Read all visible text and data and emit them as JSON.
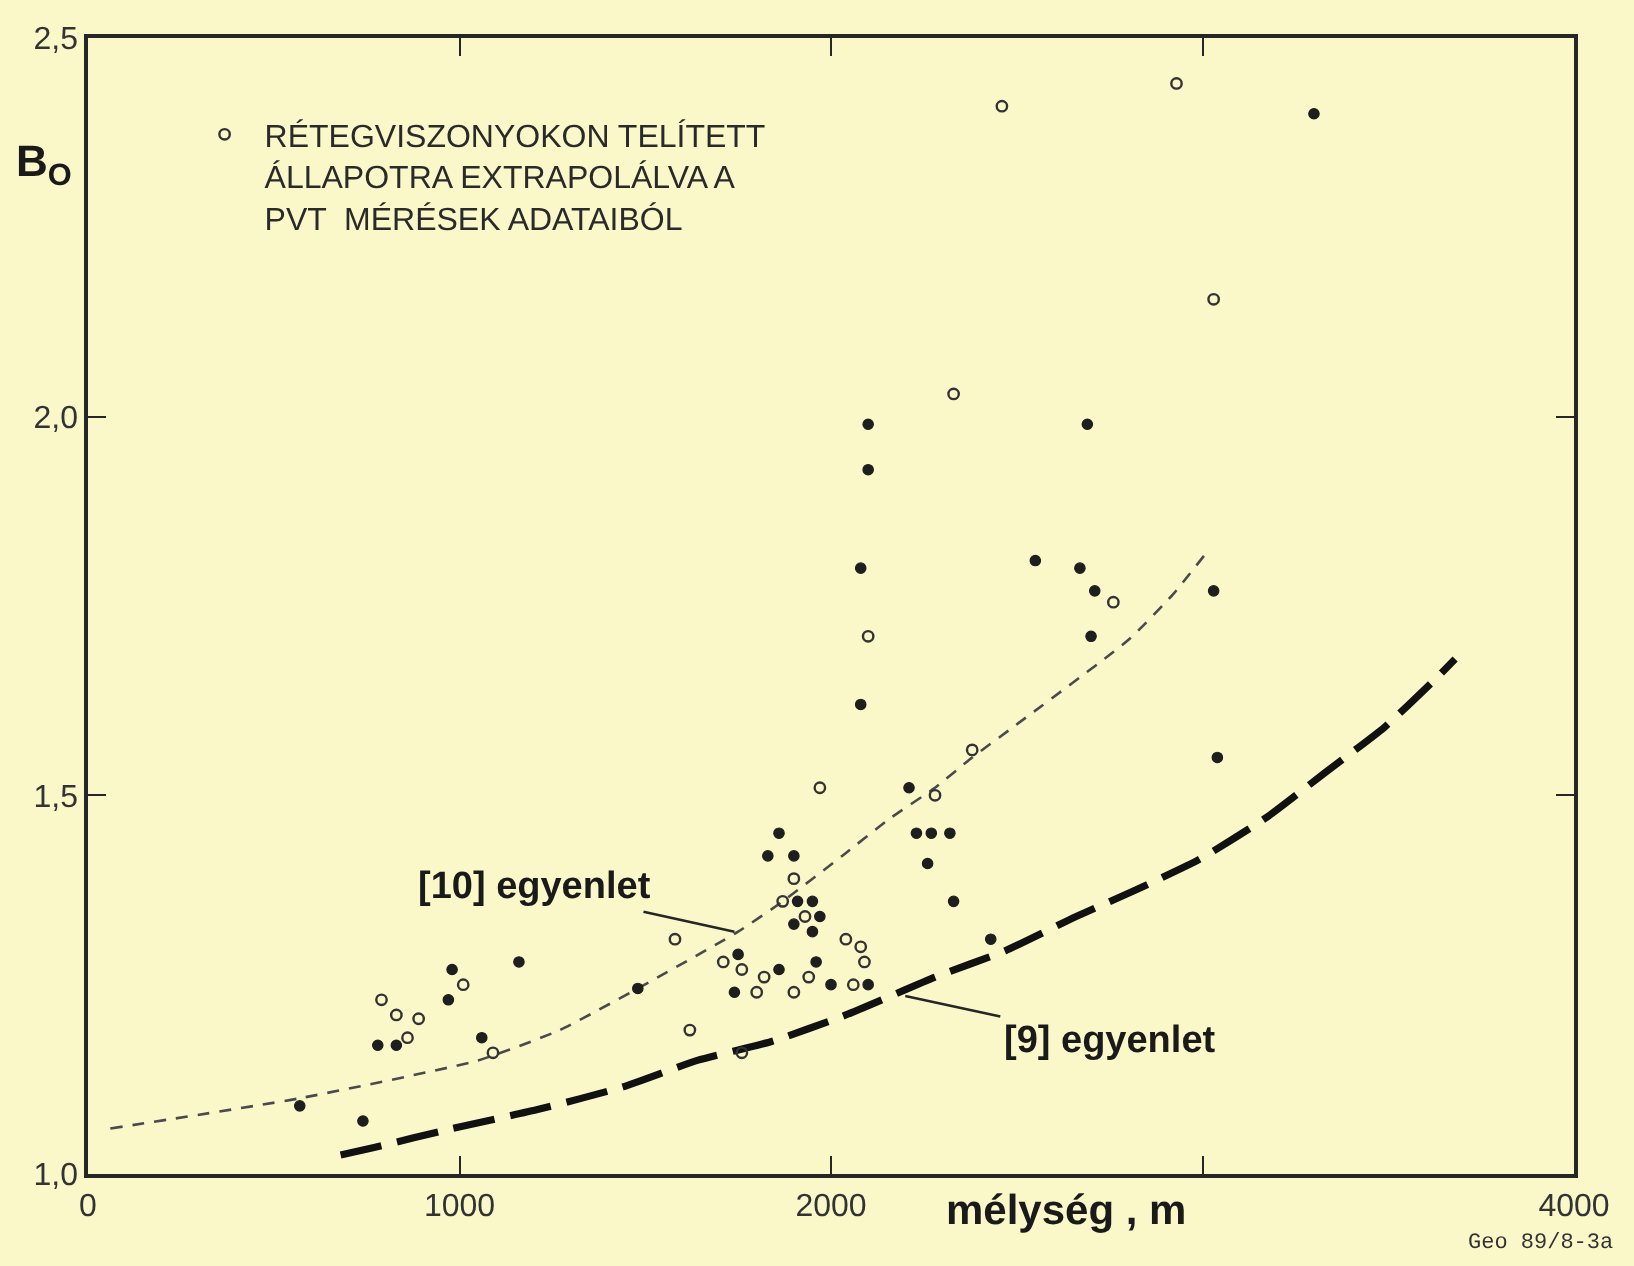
{
  "chart_data": {
    "type": "scatter",
    "xlabel": "mélység , m",
    "ylabel": "B$_{O}$",
    "xlim": [
      0,
      4000
    ],
    "xticks": [
      0,
      1000,
      2000,
      {
        "value": 3000,
        "label": null
      },
      4000
    ],
    "ylim": [
      1.0,
      2.5
    ],
    "yticks": [
      {
        "value": 1.0,
        "label": "1,0"
      },
      {
        "value": 1.5,
        "label": "1,5"
      },
      {
        "value": 2.0,
        "label": "2,0"
      },
      {
        "value": 2.5,
        "label": "2,5"
      }
    ],
    "grid": false,
    "legend": "top left",
    "series": [
      {
        "type": "line",
        "line_style": "dashed",
        "marker": "none",
        "color": "#4a4a4a",
        "x": [
          60,
          570,
          1050,
          1270,
          1480,
          1750,
          1870,
          2030,
          2160,
          2280,
          2380,
          2490,
          2800,
          2920,
          3010
        ],
        "values": [
          1.06,
          1.1,
          1.15,
          1.19,
          1.245,
          1.32,
          1.36,
          1.42,
          1.47,
          1.51,
          1.55,
          1.59,
          1.705,
          1.765,
          1.82
        ]
      },
      {
        "type": "line",
        "line_style": "dashed",
        "marker": "none",
        "color": "#111111",
        "x": [
          680,
          770,
          980,
          1210,
          1440,
          1640,
          1840,
          2040,
          2280,
          2470,
          2660,
          2820,
          2990,
          3170,
          3330,
          3490,
          3630,
          3680
        ],
        "values": [
          1.025,
          1.035,
          1.06,
          1.085,
          1.115,
          1.15,
          1.175,
          1.21,
          1.26,
          1.295,
          1.34,
          1.375,
          1.415,
          1.47,
          1.53,
          1.59,
          1.655,
          1.68
        ]
      },
      {
        "marker": "circle",
        "color": "#1e1e1e",
        "x": [
          3300,
          2100,
          2100,
          2690,
          2080,
          2550,
          2670,
          2710,
          3030,
          2700,
          2080,
          3040,
          2210,
          2230,
          2270,
          2320,
          2260,
          2330,
          2430,
          1960,
          2000,
          2100,
          1860,
          1830,
          1900,
          1910,
          1950,
          1970,
          1900,
          1950,
          1750,
          1860,
          1740,
          1480,
          570,
          740,
          780,
          830,
          970,
          980,
          1060,
          1160
        ],
        "values": [
          2.4,
          1.99,
          1.93,
          1.99,
          1.8,
          1.81,
          1.8,
          1.77,
          1.77,
          1.71,
          1.62,
          1.55,
          1.51,
          1.45,
          1.45,
          1.45,
          1.41,
          1.36,
          1.31,
          1.28,
          1.25,
          1.25,
          1.45,
          1.42,
          1.42,
          1.36,
          1.36,
          1.34,
          1.33,
          1.32,
          1.29,
          1.27,
          1.24,
          1.245,
          1.09,
          1.07,
          1.17,
          1.17,
          1.23,
          1.27,
          1.18,
          1.28
        ]
      },
      {
        "marker": "circle-open",
        "color": "#333333",
        "name": "RÉTEGVISZONYOKON TELÍTETT\nÁLLAPOTRA EXTRAPOLÁLVA A\nPVT  MÉRÉSEK ADATAIBÓL",
        "x": [
          2930,
          2460,
          3030,
          2330,
          2760,
          2100,
          2380,
          1970,
          2280,
          2040,
          2080,
          2090,
          1940,
          2060,
          1900,
          1870,
          1930,
          1580,
          1710,
          1760,
          1820,
          1800,
          1900,
          1620,
          1760,
          790,
          830,
          860,
          890,
          1010,
          1090
        ],
        "values": [
          2.44,
          2.41,
          2.155,
          2.03,
          1.755,
          1.71,
          1.56,
          1.51,
          1.5,
          1.31,
          1.3,
          1.28,
          1.26,
          1.25,
          1.39,
          1.36,
          1.34,
          1.31,
          1.28,
          1.27,
          1.26,
          1.24,
          1.24,
          1.19,
          1.16,
          1.23,
          1.21,
          1.18,
          1.205,
          1.25,
          1.16
        ]
      }
    ],
    "annotations": [
      {
        "text": "[10] egyenlet",
        "x": 1740,
        "y": 1.32
      },
      {
        "text": "[9] egyenlet",
        "x": 2200,
        "y": 1.235
      },
      "Geo 89/8-3a"
    ]
  }
}
